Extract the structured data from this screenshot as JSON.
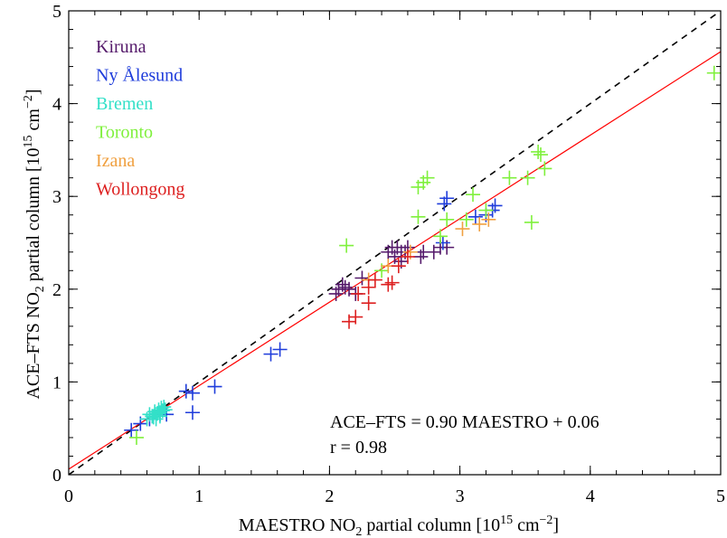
{
  "chart_data": {
    "type": "scatter",
    "xlabel": "MAESTRO NO",
    "ylabel": "ACE–FTS NO",
    "axis_label_subscript": "2",
    "axis_label_tail": " partial column [10",
    "unit_exponent": "15",
    "unit_text": " cm",
    "unit_exponent_neg": "−2",
    "unit_close": "]",
    "xlim": [
      0,
      5
    ],
    "ylim": [
      0,
      5
    ],
    "xticks": [
      "0",
      "1",
      "2",
      "3",
      "4",
      "5"
    ],
    "yticks": [
      "0",
      "1",
      "2",
      "3",
      "4",
      "5"
    ],
    "one_to_one_line": true,
    "fit": {
      "slope": 0.9,
      "intercept": 0.06,
      "color": "#ff0000"
    },
    "annotations": [
      "ACE–FTS = 0.90 MAESTRO + 0.06",
      "r = 0.98"
    ],
    "series": [
      {
        "name": "Kiruna",
        "color": "#551a6b",
        "points": [
          [
            2.05,
            1.95
          ],
          [
            2.07,
            2.0
          ],
          [
            2.1,
            2.05
          ],
          [
            2.12,
            2.02
          ],
          [
            2.15,
            2.0
          ],
          [
            2.2,
            1.95
          ],
          [
            2.25,
            2.12
          ],
          [
            2.45,
            2.4
          ],
          [
            2.48,
            2.45
          ],
          [
            2.5,
            2.35
          ],
          [
            2.52,
            2.45
          ],
          [
            2.55,
            2.4
          ],
          [
            2.58,
            2.4
          ],
          [
            2.6,
            2.45
          ],
          [
            2.7,
            2.35
          ],
          [
            2.72,
            2.4
          ],
          [
            2.8,
            2.4
          ],
          [
            2.85,
            2.45
          ],
          [
            2.9,
            2.45
          ],
          [
            2.55,
            2.3
          ]
        ]
      },
      {
        "name": "Ny Ålesund",
        "color": "#1f3ddb",
        "points": [
          [
            0.48,
            0.48
          ],
          [
            0.55,
            0.55
          ],
          [
            0.62,
            0.6
          ],
          [
            0.7,
            0.65
          ],
          [
            0.75,
            0.65
          ],
          [
            0.9,
            0.9
          ],
          [
            0.95,
            0.88
          ],
          [
            0.95,
            0.67
          ],
          [
            1.12,
            0.95
          ],
          [
            1.55,
            1.3
          ],
          [
            1.62,
            1.35
          ],
          [
            2.88,
            2.92
          ],
          [
            2.9,
            2.98
          ],
          [
            3.12,
            2.78
          ],
          [
            3.2,
            2.8
          ],
          [
            3.25,
            2.85
          ],
          [
            3.27,
            2.9
          ],
          [
            2.87,
            2.5
          ]
        ]
      },
      {
        "name": "Bremen",
        "color": "#33e0c8",
        "points": [
          [
            0.6,
            0.6
          ],
          [
            0.62,
            0.65
          ],
          [
            0.65,
            0.62
          ],
          [
            0.66,
            0.68
          ],
          [
            0.68,
            0.66
          ],
          [
            0.69,
            0.7
          ],
          [
            0.7,
            0.67
          ],
          [
            0.71,
            0.72
          ],
          [
            0.72,
            0.69
          ],
          [
            0.73,
            0.73
          ],
          [
            0.74,
            0.7
          ],
          [
            0.64,
            0.63
          ],
          [
            0.67,
            0.6
          ],
          [
            0.7,
            0.63
          ]
        ]
      },
      {
        "name": "Toronto",
        "color": "#7ff03c",
        "points": [
          [
            0.52,
            0.4
          ],
          [
            2.13,
            2.47
          ],
          [
            2.68,
            2.78
          ],
          [
            2.68,
            3.1
          ],
          [
            2.72,
            3.15
          ],
          [
            2.75,
            3.2
          ],
          [
            2.85,
            2.57
          ],
          [
            2.9,
            2.75
          ],
          [
            3.05,
            2.75
          ],
          [
            3.1,
            3.02
          ],
          [
            3.2,
            2.85
          ],
          [
            3.38,
            3.2
          ],
          [
            3.52,
            3.2
          ],
          [
            3.55,
            2.72
          ],
          [
            3.6,
            3.48
          ],
          [
            3.62,
            3.45
          ],
          [
            3.65,
            3.3
          ],
          [
            4.95,
            4.33
          ],
          [
            2.4,
            2.2
          ]
        ]
      },
      {
        "name": "Izana",
        "color": "#f0a040",
        "points": [
          [
            2.3,
            2.1
          ],
          [
            2.45,
            2.25
          ],
          [
            2.62,
            2.4
          ],
          [
            3.02,
            2.65
          ],
          [
            3.15,
            2.7
          ],
          [
            3.22,
            2.75
          ]
        ]
      },
      {
        "name": "Wollongong",
        "color": "#dd2020",
        "points": [
          [
            2.15,
            1.65
          ],
          [
            2.2,
            1.7
          ],
          [
            2.3,
            1.85
          ],
          [
            2.3,
            2.02
          ],
          [
            2.45,
            2.05
          ],
          [
            2.48,
            2.07
          ],
          [
            2.22,
            1.95
          ],
          [
            2.53,
            2.25
          ],
          [
            2.6,
            2.35
          ],
          [
            2.35,
            2.1
          ]
        ]
      }
    ]
  }
}
